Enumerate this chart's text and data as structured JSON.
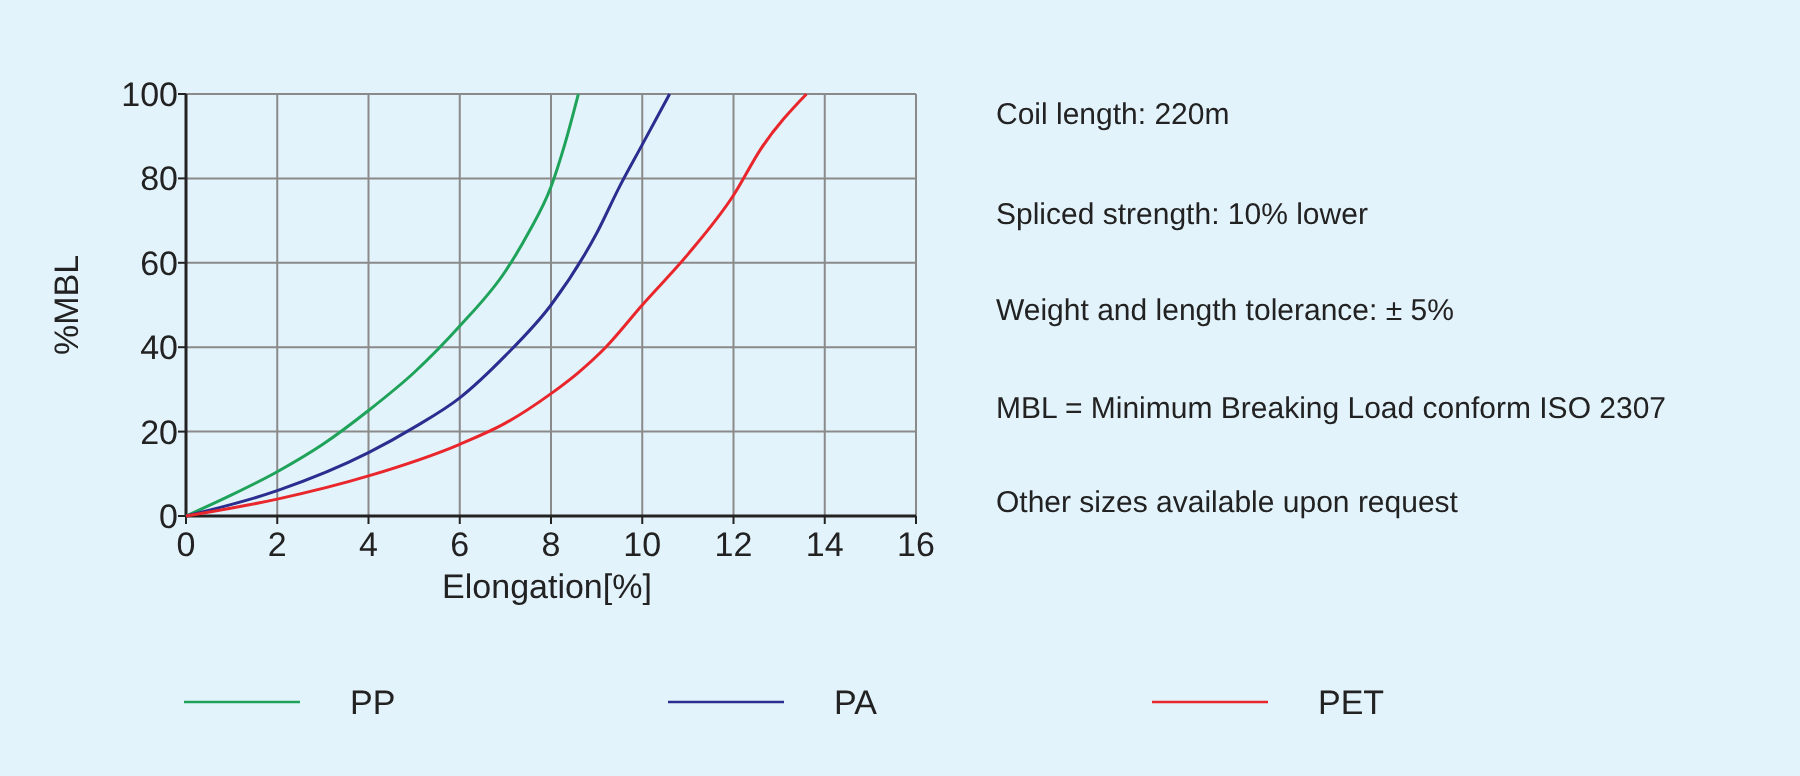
{
  "chart_data": {
    "type": "line",
    "xlabel": "Elongation[%]",
    "ylabel": "%MBL",
    "xlim": [
      0,
      16
    ],
    "ylim": [
      0,
      100
    ],
    "xticks": [
      0,
      2,
      4,
      6,
      8,
      10,
      12,
      14,
      16
    ],
    "yticks": [
      0,
      20,
      40,
      60,
      80,
      100
    ],
    "grid": true,
    "legend": "bottom",
    "marker": "none",
    "line_style": "solid",
    "series": [
      {
        "name": "PP",
        "color": "#1fa35a",
        "x": [
          0,
          1,
          2,
          3,
          4,
          5,
          6,
          7,
          7.5,
          8,
          8.3,
          8.6
        ],
        "values": [
          0,
          5,
          10.5,
          17,
          25,
          34,
          45,
          58,
          67,
          78,
          88,
          100
        ]
      },
      {
        "name": "PA",
        "color": "#2b2d8f",
        "x": [
          0,
          2,
          4,
          5,
          6,
          7,
          8,
          9,
          9.5,
          10,
          10.6
        ],
        "values": [
          0,
          6,
          15,
          21,
          28,
          38,
          50,
          67,
          78,
          88,
          100
        ]
      },
      {
        "name": "PET",
        "color": "#e8262b",
        "x": [
          0,
          2,
          4,
          6,
          7,
          8,
          8.6,
          9.2,
          10,
          11,
          12,
          12.6,
          13.6
        ],
        "values": [
          0,
          4,
          9.5,
          17,
          22,
          29,
          34,
          40,
          50,
          62,
          76,
          87,
          100
        ]
      }
    ],
    "annotations": [
      "Coil length: 220m",
      "Spliced strength: 10% lower",
      "Weight and length tolerance: ± 5%",
      "MBL = Minimum Breaking Load conform ISO 2307",
      "Other sizes available upon request"
    ]
  }
}
